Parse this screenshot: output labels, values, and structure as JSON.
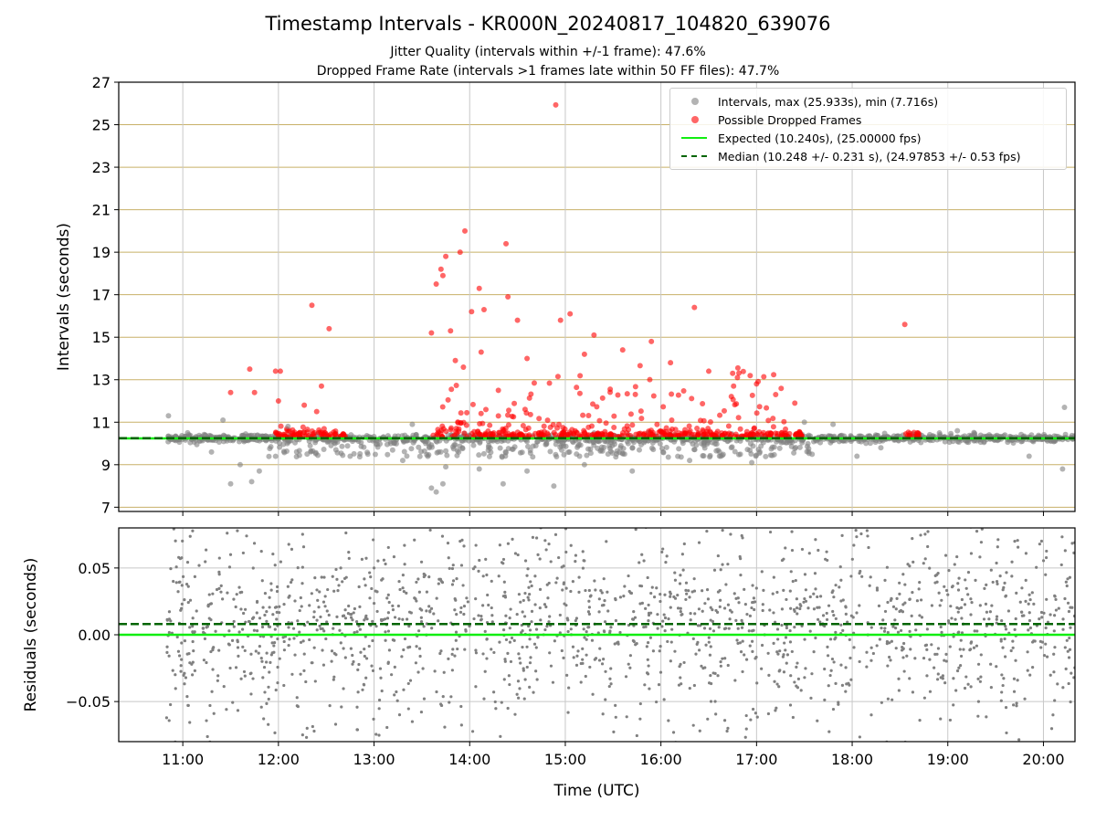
{
  "title": "Timestamp Intervals - KR000N_20240817_104820_639076",
  "subtitle_1": "Jitter Quality (intervals within +/-1 frame): 47.6%",
  "subtitle_2": "Dropped Frame Rate (intervals >1 frames late within 50 FF files): 47.7%",
  "colors": {
    "intervals": "#808080",
    "dropped": "#ff0000",
    "expected": "#11ee11",
    "median": "#006400",
    "hgrid": "#c8b068",
    "vgrid": "#c8c8c8"
  },
  "chart_data": [
    {
      "type": "scatter",
      "xlabel": "",
      "ylabel": "Intervals (seconds)",
      "xlim": [
        10.33,
        20.33
      ],
      "ylim": [
        6.8,
        27
      ],
      "yticks": [
        7,
        9,
        11,
        13,
        15,
        17,
        19,
        21,
        23,
        25,
        27
      ],
      "grid": true,
      "legend_position": "top-right",
      "legend": [
        "Intervals, max (25.933s), min (7.716s)",
        "Possible Dropped Frames",
        "Expected (10.240s), (25.00000 fps)",
        "Median (10.248 +/- 0.231 s), (24.97853 +/- 0.53 fps)"
      ],
      "expected": 10.24,
      "median": 10.248,
      "series": [
        {
          "name": "Intervals, max (25.933s), min (7.716s)",
          "x": [
            10.85,
            11.5,
            11.6,
            11.72,
            12.55,
            13.6,
            13.65,
            13.72,
            14.35,
            14.88,
            13.4,
            18.05,
            19.85,
            20.2,
            20.22,
            11.05,
            11.3,
            11.42,
            11.8,
            12.1,
            12.3,
            13.3,
            13.75,
            14.1,
            14.6,
            15.2,
            15.7,
            16.3,
            16.95,
            17.5,
            17.8,
            18.3,
            19.1
          ],
          "y": [
            11.3,
            8.1,
            9.0,
            8.2,
            9.9,
            7.9,
            7.716,
            8.1,
            8.1,
            8.0,
            10.9,
            9.4,
            9.4,
            8.8,
            11.7,
            10.5,
            9.6,
            11.1,
            8.7,
            10.8,
            9.5,
            9.2,
            8.9,
            8.8,
            8.7,
            9.0,
            8.7,
            9.2,
            9.1,
            11.0,
            10.9,
            9.8,
            10.6
          ]
        },
        {
          "name": "Possible Dropped Frames",
          "x": [
            11.5,
            11.7,
            11.75,
            11.97,
            12.02,
            12.27,
            12.35,
            12.45,
            12.53,
            12.0,
            12.4,
            13.6,
            13.65,
            13.7,
            13.72,
            13.75,
            13.8,
            13.9,
            13.95,
            14.02,
            14.1,
            14.12,
            14.15,
            14.38,
            14.4,
            14.9,
            14.95,
            15.05,
            15.3,
            15.6,
            15.9,
            16.1,
            16.35,
            16.5,
            16.75,
            16.8,
            17.0,
            17.2,
            17.4,
            18.55,
            14.5,
            15.2,
            13.85,
            14.3,
            14.6
          ],
          "y": [
            12.4,
            13.5,
            12.4,
            13.4,
            13.4,
            11.8,
            16.5,
            12.7,
            15.4,
            12.0,
            11.5,
            15.2,
            17.5,
            18.2,
            17.9,
            18.8,
            15.3,
            19.0,
            20.0,
            16.2,
            17.3,
            14.3,
            16.3,
            19.4,
            16.9,
            25.933,
            15.8,
            16.1,
            15.1,
            14.4,
            14.8,
            13.8,
            16.4,
            13.4,
            13.3,
            13.1,
            12.8,
            12.3,
            11.9,
            15.6,
            15.8,
            14.2,
            13.9,
            12.5,
            14.0
          ]
        }
      ]
    },
    {
      "type": "scatter",
      "xlabel": "Time (UTC)",
      "ylabel": "Residuals (seconds)",
      "xlim": [
        10.33,
        20.33
      ],
      "ylim": [
        -0.08,
        0.08
      ],
      "yticks": [
        -0.05,
        0.0,
        0.05
      ],
      "ytick_labels": [
        "−0.05",
        "0.00",
        "0.05"
      ],
      "xticks": [
        11,
        12,
        13,
        14,
        15,
        16,
        17,
        18,
        19,
        20
      ],
      "xtick_labels": [
        "11:00",
        "12:00",
        "13:00",
        "14:00",
        "15:00",
        "16:00",
        "17:00",
        "18:00",
        "19:00",
        "20:00"
      ],
      "grid": true,
      "expected": 0.0,
      "median": 0.008,
      "series": [
        {
          "name": "",
          "x": [
            10.9,
            11.1,
            11.5,
            12.3,
            13.0,
            13.4,
            13.9,
            14.4,
            14.9,
            15.8,
            16.7,
            17.3,
            18.2,
            19.0,
            19.7,
            20.1
          ],
          "y": [
            0.04,
            -0.03,
            0.06,
            -0.07,
            0.05,
            -0.065,
            0.07,
            -0.055,
            0.075,
            0.06,
            -0.07,
            0.065,
            -0.06,
            0.03,
            0.07,
            -0.06
          ]
        }
      ]
    }
  ]
}
